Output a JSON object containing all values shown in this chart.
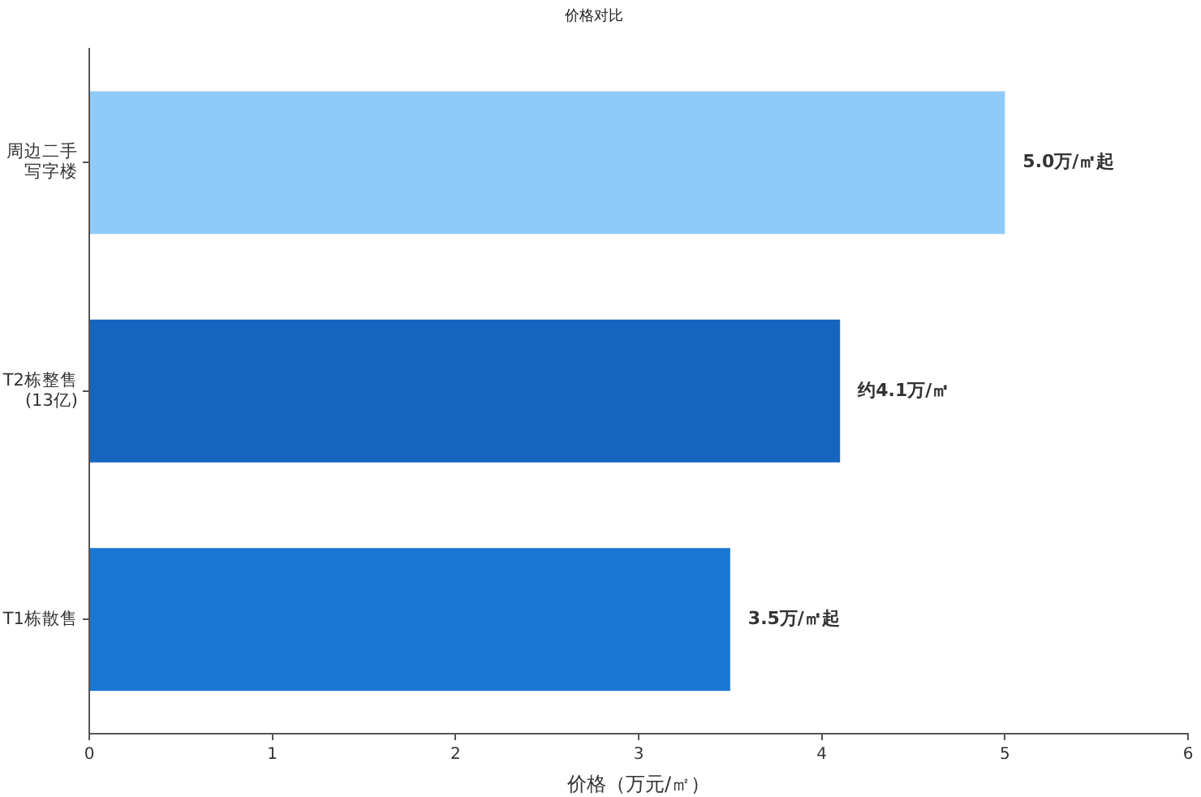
{
  "chart_data": {
    "type": "bar",
    "orientation": "horizontal",
    "title": "价格对比",
    "xlabel": "价格（万元/㎡）",
    "categories": [
      "周边二手写字楼",
      "T2栋整售\n(13亿)",
      "T1栋散售"
    ],
    "values": [
      5.0,
      4.1,
      3.5
    ],
    "colors": [
      "#90caf9",
      "#1565c0",
      "#1976d2"
    ],
    "value_labels": [
      "5.0万/㎡起",
      "约4.1万/㎡",
      "3.5万/㎡起"
    ],
    "xlim": [
      0,
      6
    ],
    "xticks": [
      0,
      1,
      2,
      3,
      4,
      5,
      6
    ],
    "grid": false,
    "legend": false
  }
}
